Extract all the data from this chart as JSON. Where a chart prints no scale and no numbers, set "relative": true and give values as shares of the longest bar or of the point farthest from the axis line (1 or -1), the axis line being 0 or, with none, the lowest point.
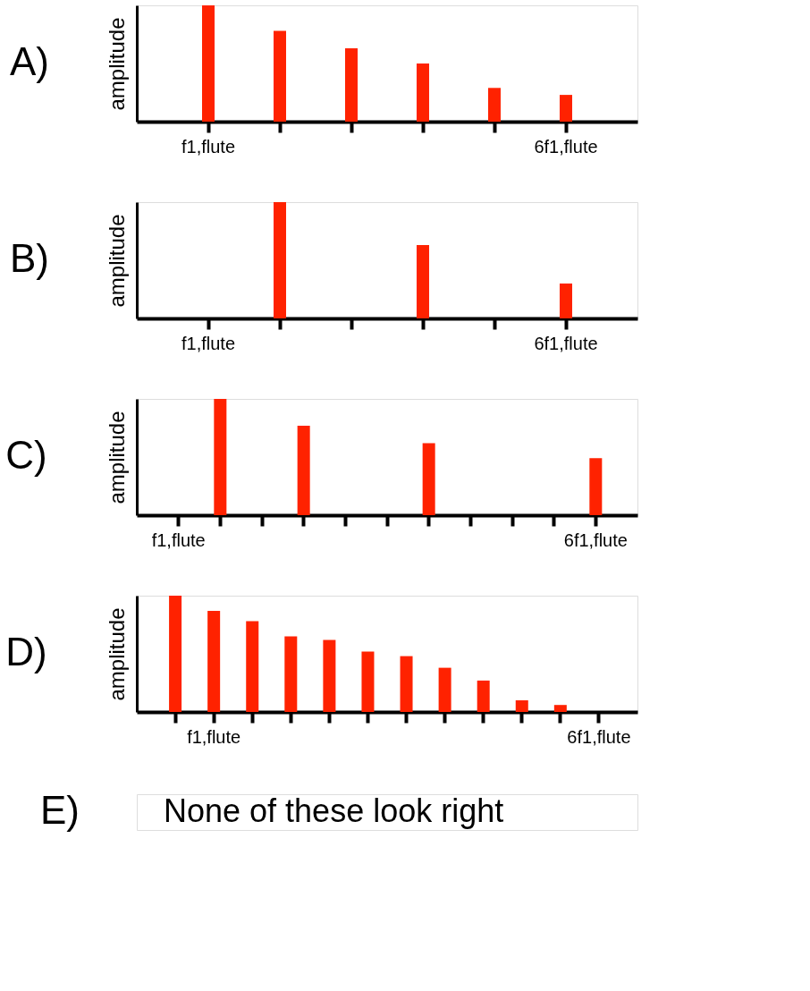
{
  "chart_data": [
    {
      "type": "bar",
      "title": "A)",
      "ylabel": "amplitude",
      "relative": true,
      "color": "#ff2200",
      "categories": [
        "f1,flute",
        null,
        null,
        null,
        null,
        "6f1,flute"
      ],
      "values": [
        1,
        0.78,
        0.63,
        0.5,
        0.29,
        0.23
      ]
    },
    {
      "type": "bar",
      "title": "B)",
      "ylabel": "amplitude",
      "relative": true,
      "color": "#ff2200",
      "categories": [
        "f1,flute",
        null,
        null,
        null,
        null,
        "6f1,flute"
      ],
      "values": [
        null,
        1,
        null,
        0.63,
        null,
        0.3
      ]
    },
    {
      "type": "bar",
      "title": "C)",
      "ylabel": "amplitude",
      "relative": true,
      "color": "#ff2200",
      "categories": [
        "f1,flute",
        null,
        null,
        null,
        null,
        null,
        null,
        null,
        null,
        null,
        "6f1,flute"
      ],
      "values": [
        null,
        1,
        null,
        0.77,
        null,
        null,
        0.62,
        null,
        null,
        null,
        0.49
      ]
    },
    {
      "type": "bar",
      "title": "D)",
      "ylabel": "amplitude",
      "relative": true,
      "color": "#ff2200",
      "categories": [
        null,
        "f1,flute",
        null,
        null,
        null,
        null,
        null,
        null,
        null,
        null,
        null,
        "6f1,flute"
      ],
      "values": [
        1,
        0.87,
        0.78,
        0.65,
        0.62,
        0.52,
        0.48,
        0.38,
        0.27,
        0.1,
        0.06,
        null
      ]
    },
    {
      "type": "other",
      "title": "E)",
      "annotations": [
        "None of these look right"
      ]
    }
  ]
}
